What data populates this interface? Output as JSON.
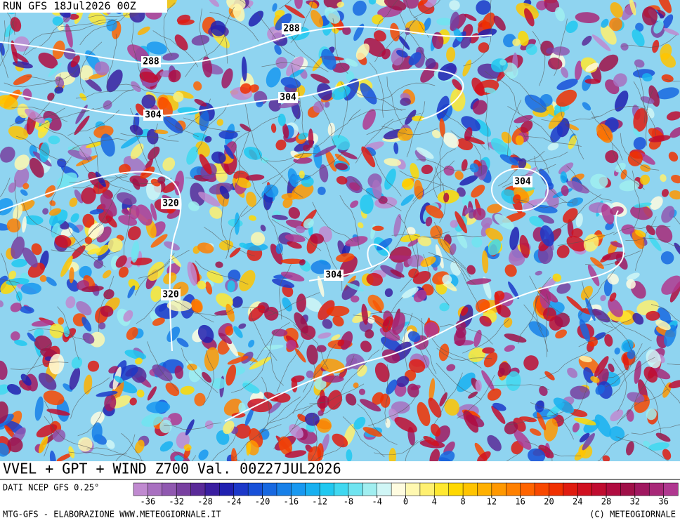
{
  "header": {
    "run": "RUN GFS 18Jul2026 00Z"
  },
  "title": "VVEL + GPT + WIND Z700 Val. 00Z27JUL2026",
  "source": "DATI NCEP GFS 0.25°",
  "credit_left": "MTG-GFS - ELABORAZIONE WWW.METEOGIORNALE.IT",
  "credit_right": "(C) METEOGIORNALE",
  "contour_labels": [
    288,
    288,
    304,
    304,
    304,
    304,
    320,
    320
  ],
  "colorbar": {
    "lim": [
      -38,
      38
    ],
    "ticks": [
      -36,
      -32,
      -28,
      -24,
      -20,
      -16,
      -12,
      -8,
      -4,
      0,
      4,
      8,
      12,
      16,
      20,
      24,
      28,
      32,
      36
    ],
    "colors": [
      "#c08ad0",
      "#a870c0",
      "#9058b0",
      "#7840a0",
      "#5a2a98",
      "#3a1ea0",
      "#2020b0",
      "#1c38c8",
      "#1850d8",
      "#1868e0",
      "#1880e8",
      "#1898f0",
      "#18b0f0",
      "#20c8f0",
      "#40d8f0",
      "#70e4f0",
      "#a0eef0",
      "#d0f6f6",
      "#fffce0",
      "#fff8b0",
      "#fff070",
      "#ffe830",
      "#ffd800",
      "#ffc400",
      "#ffb000",
      "#ff9800",
      "#ff8000",
      "#ff6400",
      "#f84800",
      "#f03000",
      "#e01c10",
      "#d01020",
      "#c00c30",
      "#b00c40",
      "#a01048",
      "#a01860",
      "#a82878",
      "#b03890"
    ]
  }
}
